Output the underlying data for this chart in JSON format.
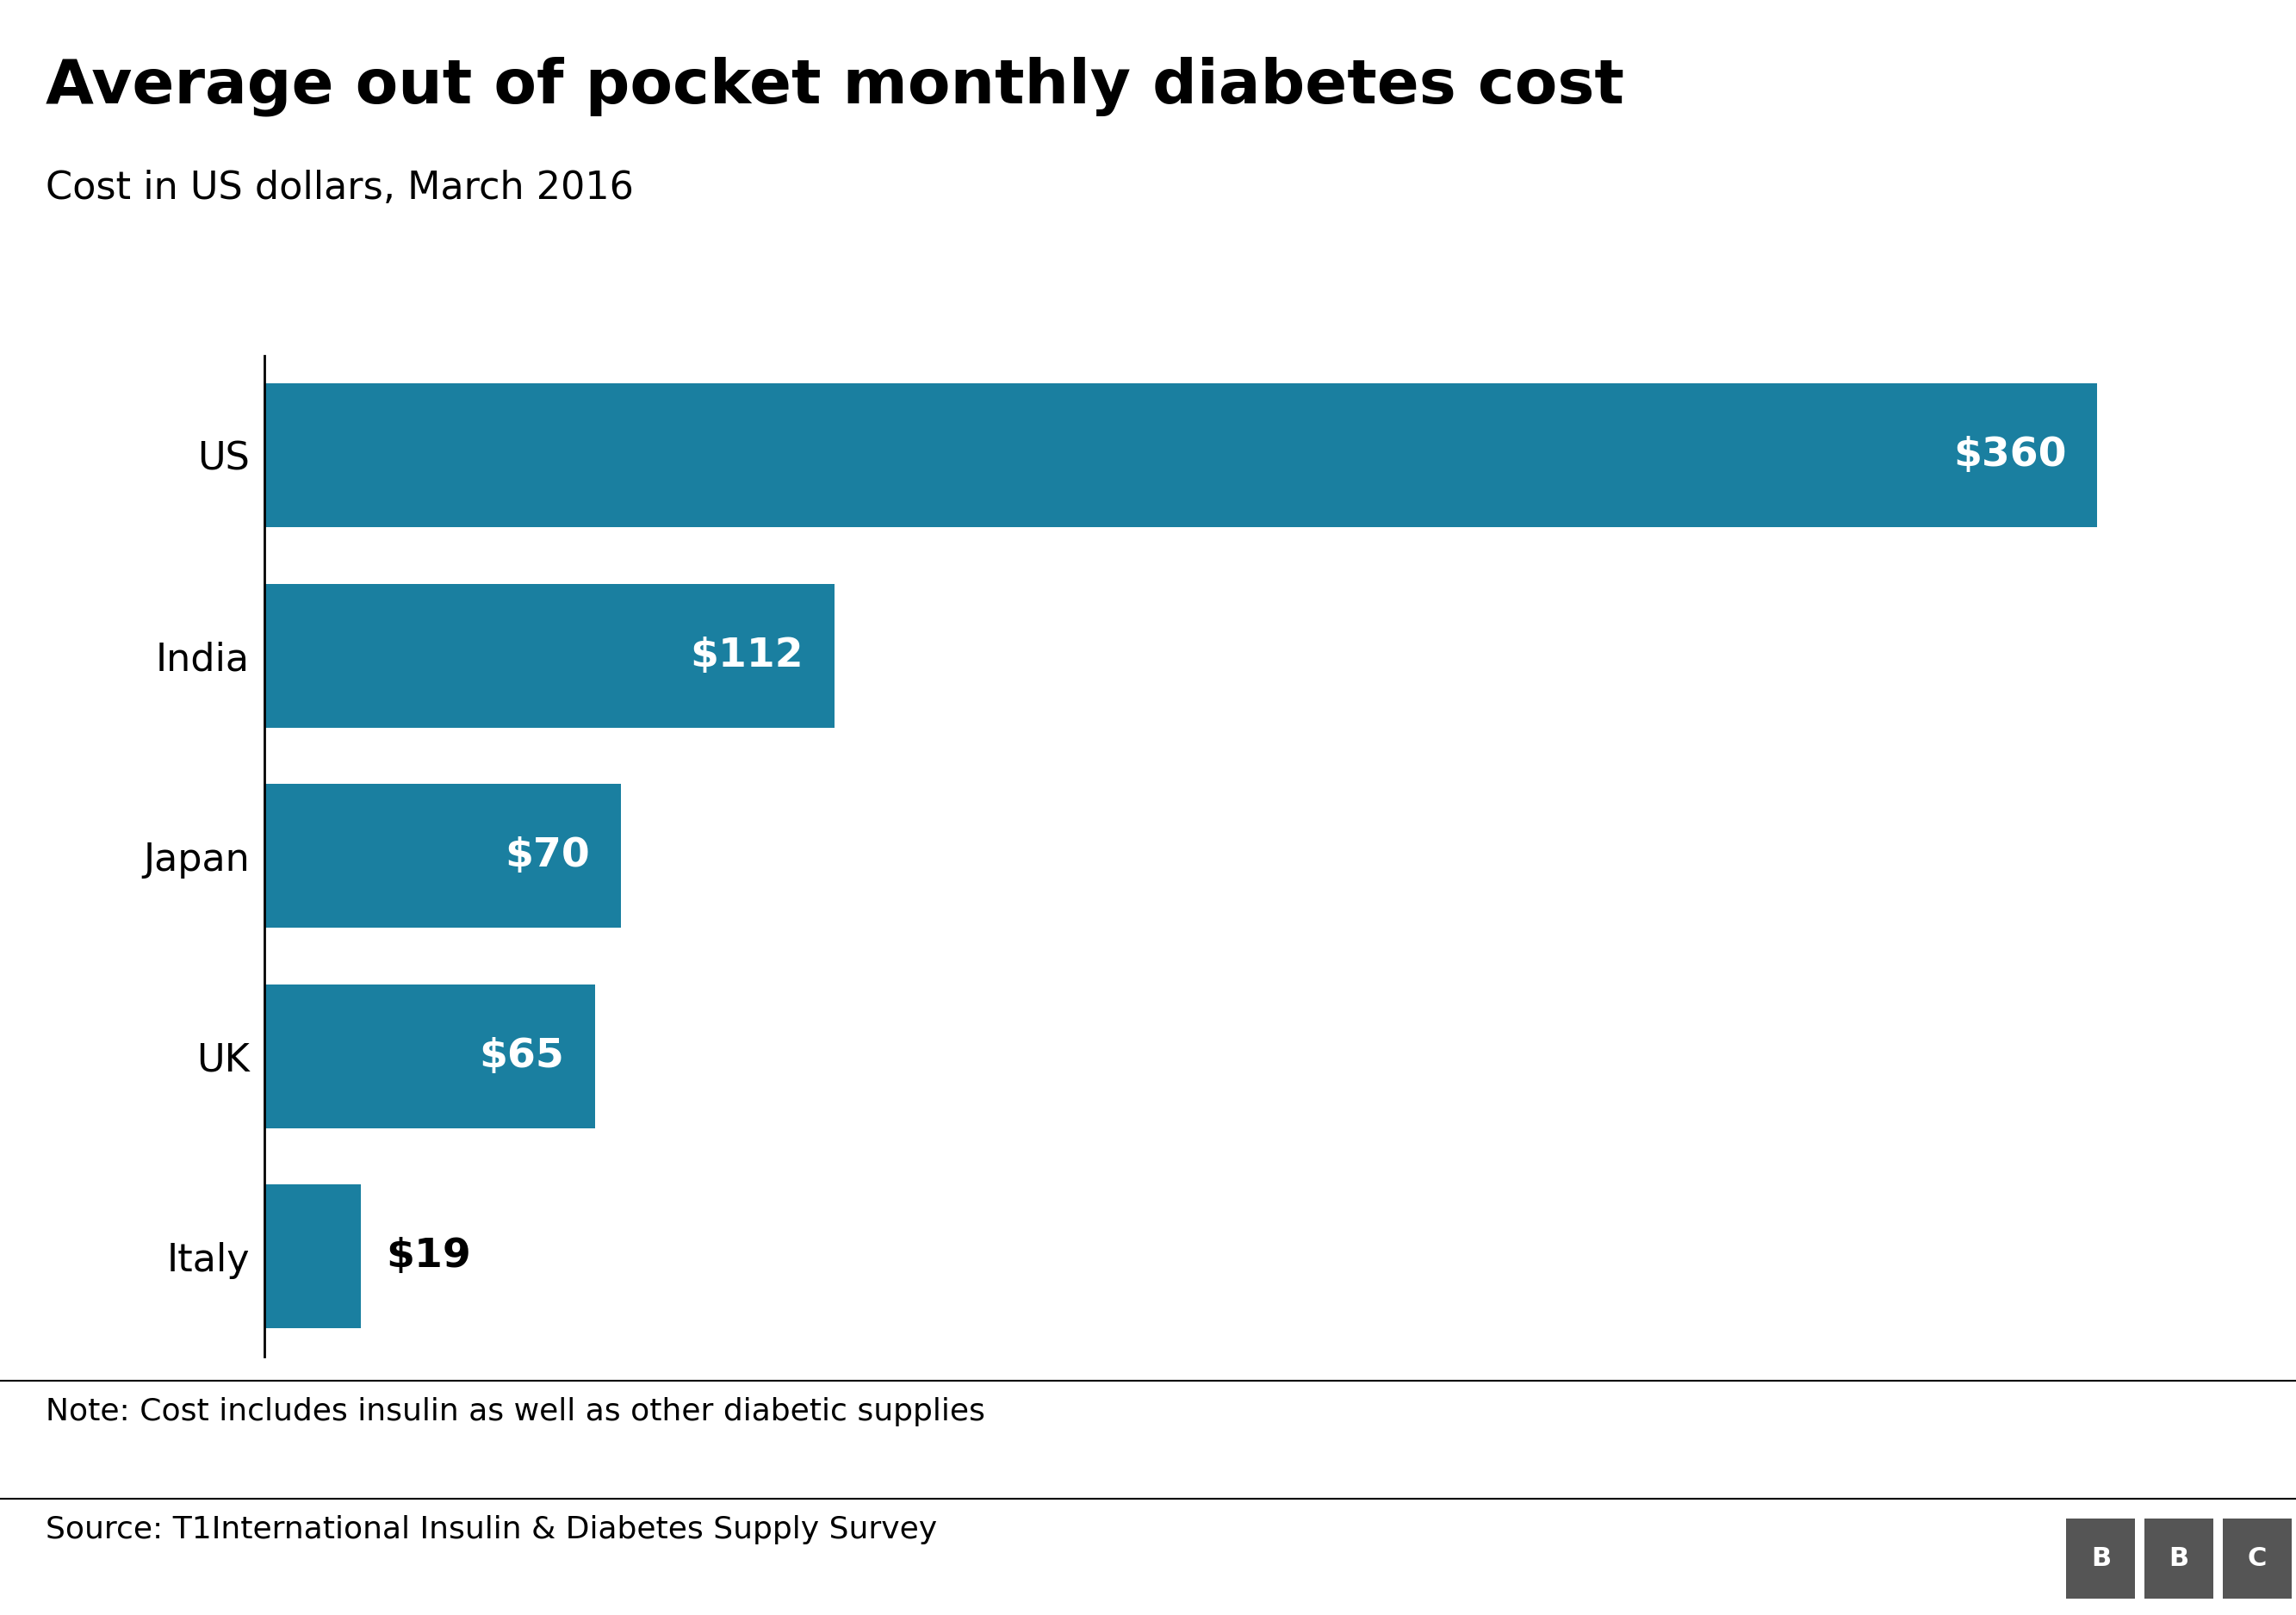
{
  "title": "Average out of pocket monthly diabetes cost",
  "subtitle": "Cost in US dollars, March 2016",
  "note": "Note: Cost includes insulin as well as other diabetic supplies",
  "source": "Source: T1International Insulin & Diabetes Supply Survey",
  "categories": [
    "US",
    "India",
    "Japan",
    "UK",
    "Italy"
  ],
  "values": [
    360,
    112,
    70,
    65,
    19
  ],
  "labels": [
    "$360",
    "$112",
    "$70",
    "$65",
    "$19"
  ],
  "bar_color": "#1a7fa0",
  "label_color_inside": "#ffffff",
  "label_color_outside": "#000000",
  "background_color": "#ffffff",
  "title_fontsize": 52,
  "subtitle_fontsize": 32,
  "label_fontsize": 34,
  "category_fontsize": 32,
  "note_fontsize": 26,
  "source_fontsize": 26,
  "xlim": [
    0,
    390
  ],
  "threshold_inside": 30,
  "bar_height": 0.72,
  "bbc_box_color": "#555555",
  "bbc_text_color": "#ffffff",
  "bbc_fontsize": 22
}
